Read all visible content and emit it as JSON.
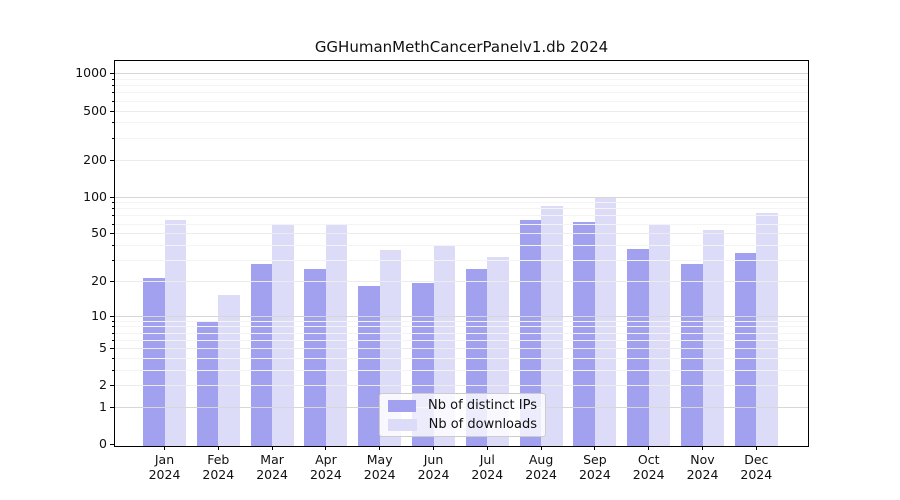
{
  "chart_data": {
    "type": "bar",
    "title": "GGHumanMethCancerPanelv1.db 2024",
    "categories": [
      "Jan",
      "Feb",
      "Mar",
      "Apr",
      "May",
      "Jun",
      "Jul",
      "Aug",
      "Sep",
      "Oct",
      "Nov",
      "Dec"
    ],
    "x_year": "2024",
    "series": [
      {
        "name": "Nb of distinct IPs",
        "color": "#a1a1f0",
        "values": [
          21,
          9,
          28,
          25,
          18,
          19,
          25,
          64,
          62,
          37,
          28,
          34
        ]
      },
      {
        "name": "Nb of downloads",
        "color": "#dcdcf9",
        "values": [
          64,
          15,
          58,
          58,
          36,
          40,
          32,
          84,
          100,
          60,
          53,
          74
        ]
      }
    ],
    "yscale": "log1p",
    "y_ticks": [
      1000,
      500,
      200,
      100,
      50,
      20,
      10,
      5,
      2,
      1,
      0
    ],
    "ylim": [
      0,
      1250
    ],
    "grid": "both",
    "legend_position": "lower center"
  }
}
